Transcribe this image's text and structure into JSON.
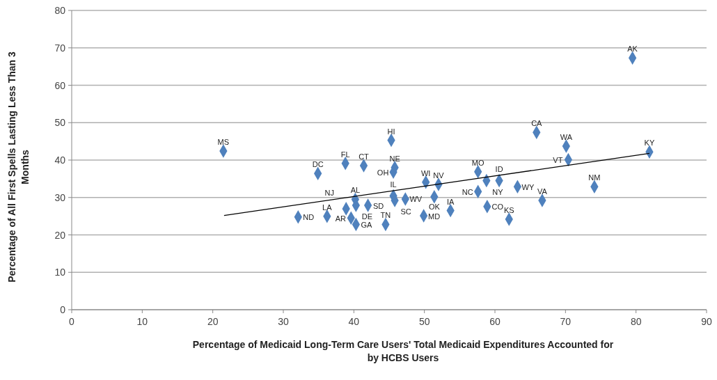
{
  "chart_data": {
    "type": "scatter",
    "xlabel": "Percentage of Medicaid Long-Term Care Users' Total Medicaid Expenditures Accounted for by HCBS Users",
    "ylabel": "Percentage of All First Spells Lasting Less Than 3 Months",
    "xlim": [
      0,
      90
    ],
    "xticks": [
      0,
      10,
      20,
      30,
      40,
      50,
      60,
      70,
      80,
      90
    ],
    "ylim": [
      0,
      80
    ],
    "yticks": [
      0,
      10,
      20,
      30,
      40,
      50,
      60,
      70,
      80
    ],
    "grid": "y",
    "marker": "diamond",
    "series": [
      {
        "color": "#4f81bd",
        "x": [
          21.5,
          32.1,
          36.2,
          34.9,
          38.8,
          41.4,
          45.3,
          45.8,
          45.6,
          40.2,
          38.9,
          40.3,
          39.6,
          40.3,
          42.0,
          44.5,
          45.6,
          45.8,
          47.3,
          49.9,
          53.7,
          50.2,
          52.0,
          51.4,
          57.6,
          58.8,
          60.6,
          57.6,
          58.9,
          62.0,
          63.2,
          66.7,
          65.9,
          70.1,
          70.4,
          74.1,
          81.9,
          79.5
        ],
        "values": [
          42.4,
          24.8,
          25.0,
          36.4,
          39.1,
          38.5,
          45.3,
          38.0,
          36.8,
          29.5,
          27.0,
          27.9,
          24.5,
          22.8,
          27.9,
          22.8,
          30.4,
          29.2,
          29.6,
          25.1,
          26.5,
          34.1,
          33.5,
          30.2,
          36.9,
          34.5,
          34.5,
          31.6,
          27.6,
          24.2,
          32.9,
          29.2,
          47.4,
          43.7,
          40.1,
          32.9,
          42.2,
          67.3
        ],
        "value_labels": [
          "MS",
          "ND",
          "LA",
          "DC",
          "FL",
          "CT",
          "HI",
          "NE",
          "OH",
          "AL",
          "NJ",
          "DE",
          "AR",
          "GA",
          "SD",
          "TN",
          "IL",
          "SC",
          "WV",
          "MD",
          "IA",
          "WI",
          "NV",
          "OK",
          "MO",
          "NY",
          "ID",
          "NC",
          "CO",
          "KS",
          "WY",
          "VA",
          "CA",
          "WA",
          "VT",
          "NM",
          "KY",
          "AK"
        ]
      },
      {
        "type": "line",
        "color": "#000000",
        "marker": "none",
        "x": [
          21.6,
          81.9
        ],
        "values": [
          25.2,
          41.8
        ]
      }
    ]
  }
}
